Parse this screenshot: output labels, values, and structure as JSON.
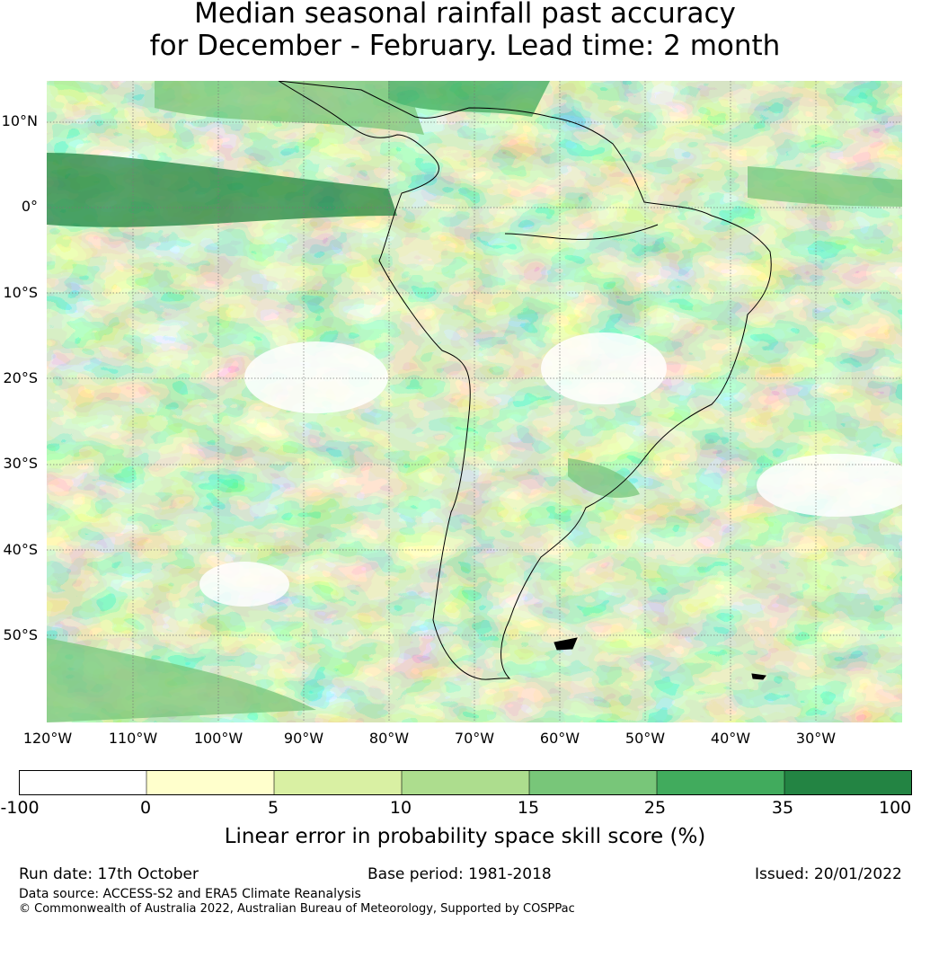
{
  "title": {
    "line1": "Median seasonal rainfall past accuracy",
    "line2": "for December - February. Lead time: 2 month"
  },
  "map": {
    "lon_labels": [
      "120°W",
      "110°W",
      "100°W",
      "90°W",
      "80°W",
      "70°W",
      "60°W",
      "50°W",
      "40°W",
      "30°W"
    ],
    "lat_labels": [
      "10°N",
      "0°",
      "10°S",
      "20°S",
      "30°S",
      "40°S",
      "50°S"
    ],
    "extent": {
      "lon_min": -120,
      "lon_max": -20,
      "lat_min": -60,
      "lat_max": 15
    },
    "gridlines": true
  },
  "colorbar": {
    "title": "Linear error in probability space skill score (%)",
    "ticks": [
      "-100",
      "0",
      "5",
      "10",
      "15",
      "25",
      "35",
      "100"
    ],
    "colors": [
      "#ffffff",
      "#ffffcc",
      "#d9f0a3",
      "#addd8e",
      "#78c679",
      "#41ab5d",
      "#238443"
    ]
  },
  "footer": {
    "run_date": "Run date: 17th October",
    "base_period": "Base period: 1981-2018",
    "issued": "Issued: 20/01/2022",
    "data_source": "Data source: ACCESS-S2 and ERA5 Climate Reanalysis",
    "copyright": "© Commonwealth of Australia 2022, Australian Bureau of Meteorology, Supported by COSPPac"
  }
}
